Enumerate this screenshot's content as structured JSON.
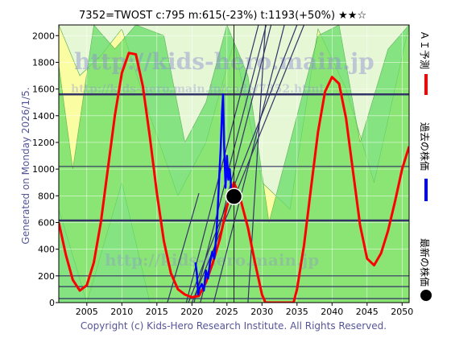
{
  "title": "7352=TWOST    c:795  m:615(-23%)  t:1193(+50%)  ★★☆",
  "side_text": "Generated on Monday 2026/1/5.",
  "footer": "Copyright (c) Kids-Hero Research Institute. All Rights Reserved.",
  "watermark": {
    "line1": "http://kids-hero.main.jp",
    "line2": "http://kids-hero.main.jp/code/7352.html"
  },
  "legend": {
    "ai_label": "ＡＩ予測",
    "past_label": "過去の株価",
    "latest_label": "最新の株価"
  },
  "colors": {
    "ai": "#ff0000",
    "past": "#0000ff",
    "latest": "#000000",
    "band_green": "#55dd55",
    "band_yellow": "#ffff88",
    "trend": "#333366",
    "hline": "#333366"
  },
  "chart_data": {
    "type": "line",
    "xlim": [
      2001,
      2051
    ],
    "ylim": [
      0,
      2080
    ],
    "x_ticks": [
      2005,
      2010,
      2015,
      2020,
      2025,
      2030,
      2035,
      2040,
      2045,
      2050
    ],
    "y_ticks": [
      0,
      200,
      400,
      600,
      800,
      1000,
      1200,
      1400,
      1600,
      1800,
      2000
    ],
    "grid": true,
    "current": {
      "year": 2026.0,
      "value": 795
    },
    "min_level": 615,
    "target_level": 1193,
    "horizontal_levels": [
      {
        "value": 1560,
        "weight": "thick"
      },
      {
        "value": 1020,
        "weight": "normal"
      },
      {
        "value": 615,
        "weight": "thick"
      },
      {
        "value": 200,
        "weight": "normal"
      },
      {
        "value": 120,
        "weight": "normal"
      },
      {
        "value": 30,
        "weight": "normal"
      }
    ],
    "trend_lines": [
      [
        [
          2019.2,
          0
        ],
        [
          2029.5,
          2080
        ]
      ],
      [
        [
          2020.3,
          0
        ],
        [
          2030.6,
          2080
        ]
      ],
      [
        [
          2021.2,
          0
        ],
        [
          2031.3,
          2080
        ]
      ],
      [
        [
          2023.1,
          0
        ],
        [
          2033.2,
          2080
        ]
      ],
      [
        [
          2019.5,
          0
        ],
        [
          2035.0,
          2080
        ]
      ],
      [
        [
          2020.0,
          0
        ],
        [
          2036.0,
          2080
        ]
      ],
      [
        [
          2016.5,
          0
        ],
        [
          2021.0,
          820
        ]
      ],
      [
        [
          2028.0,
          0
        ],
        [
          2030.5,
          2080
        ]
      ]
    ],
    "series": [
      {
        "name": "ＡＩ予測",
        "color": "#ff0000",
        "points": [
          [
            2001.0,
            600
          ],
          [
            2002.0,
            360
          ],
          [
            2003.0,
            170
          ],
          [
            2004.0,
            90
          ],
          [
            2005.0,
            130
          ],
          [
            2006.0,
            300
          ],
          [
            2007.0,
            600
          ],
          [
            2008.0,
            1000
          ],
          [
            2009.0,
            1400
          ],
          [
            2010.0,
            1720
          ],
          [
            2011.0,
            1870
          ],
          [
            2012.0,
            1860
          ],
          [
            2013.0,
            1620
          ],
          [
            2014.0,
            1240
          ],
          [
            2015.0,
            820
          ],
          [
            2016.0,
            460
          ],
          [
            2017.0,
            220
          ],
          [
            2018.0,
            100
          ],
          [
            2019.0,
            60
          ],
          [
            2020.0,
            40
          ],
          [
            2021.0,
            50
          ],
          [
            2022.0,
            150
          ],
          [
            2023.0,
            300
          ],
          [
            2024.0,
            480
          ],
          [
            2025.0,
            720
          ],
          [
            2026.0,
            900
          ],
          [
            2027.0,
            760
          ],
          [
            2028.0,
            560
          ],
          [
            2029.0,
            300
          ],
          [
            2030.0,
            60
          ],
          [
            2030.5,
            0
          ],
          [
            2034.5,
            0
          ],
          [
            2035.0,
            100
          ],
          [
            2036.0,
            430
          ],
          [
            2037.0,
            860
          ],
          [
            2038.0,
            1280
          ],
          [
            2039.0,
            1580
          ],
          [
            2040.0,
            1690
          ],
          [
            2041.0,
            1640
          ],
          [
            2042.0,
            1380
          ],
          [
            2043.0,
            980
          ],
          [
            2044.0,
            580
          ],
          [
            2045.0,
            330
          ],
          [
            2046.0,
            280
          ],
          [
            2047.0,
            370
          ],
          [
            2048.0,
            540
          ],
          [
            2049.0,
            760
          ],
          [
            2050.0,
            1000
          ],
          [
            2051.0,
            1170
          ]
        ]
      },
      {
        "name": "過去の株価",
        "color": "#0000ff",
        "points": [
          [
            2020.5,
            300
          ],
          [
            2020.7,
            220
          ],
          [
            2020.9,
            60
          ],
          [
            2021.1,
            110
          ],
          [
            2021.4,
            140
          ],
          [
            2021.7,
            90
          ],
          [
            2022.0,
            240
          ],
          [
            2022.3,
            180
          ],
          [
            2022.6,
            310
          ],
          [
            2022.9,
            380
          ],
          [
            2023.2,
            330
          ],
          [
            2023.5,
            520
          ],
          [
            2023.7,
            720
          ],
          [
            2023.9,
            940
          ],
          [
            2024.1,
            1150
          ],
          [
            2024.3,
            1430
          ],
          [
            2024.45,
            1560
          ],
          [
            2024.6,
            1180
          ],
          [
            2024.8,
            860
          ],
          [
            2025.0,
            1100
          ],
          [
            2025.2,
            920
          ],
          [
            2025.4,
            1000
          ],
          [
            2025.6,
            860
          ],
          [
            2025.8,
            820
          ],
          [
            2026.0,
            795
          ]
        ]
      }
    ],
    "bands": [
      {
        "color": "#ffff99",
        "upper": [
          [
            2001,
            2080
          ],
          [
            2004,
            1700
          ],
          [
            2007,
            1850
          ],
          [
            2010,
            2050
          ],
          [
            2014,
            1400
          ],
          [
            2018,
            800
          ],
          [
            2022,
            1200
          ],
          [
            2026,
            1950
          ],
          [
            2030,
            900
          ],
          [
            2034,
            700
          ],
          [
            2038,
            2050
          ],
          [
            2042,
            1600
          ],
          [
            2046,
            900
          ],
          [
            2051,
            2080
          ]
        ],
        "lower": [
          [
            2001,
            700
          ],
          [
            2005,
            0
          ],
          [
            2010,
            900
          ],
          [
            2014,
            0
          ],
          [
            2051,
            0
          ]
        ]
      },
      {
        "color": "#66dd66",
        "upper": [
          [
            2001,
            1780
          ],
          [
            2003,
            1000
          ],
          [
            2006,
            2080
          ],
          [
            2009,
            1900
          ],
          [
            2012,
            2080
          ],
          [
            2016,
            2000
          ],
          [
            2019,
            1200
          ],
          [
            2022,
            1500
          ],
          [
            2025,
            2080
          ],
          [
            2028,
            1700
          ],
          [
            2031,
            600
          ],
          [
            2035,
            1400
          ],
          [
            2038,
            2000
          ],
          [
            2041,
            2080
          ],
          [
            2044,
            1200
          ],
          [
            2048,
            1900
          ],
          [
            2051,
            2080
          ]
        ],
        "lower": [
          [
            2001,
            0
          ],
          [
            2051,
            0
          ]
        ]
      }
    ]
  }
}
